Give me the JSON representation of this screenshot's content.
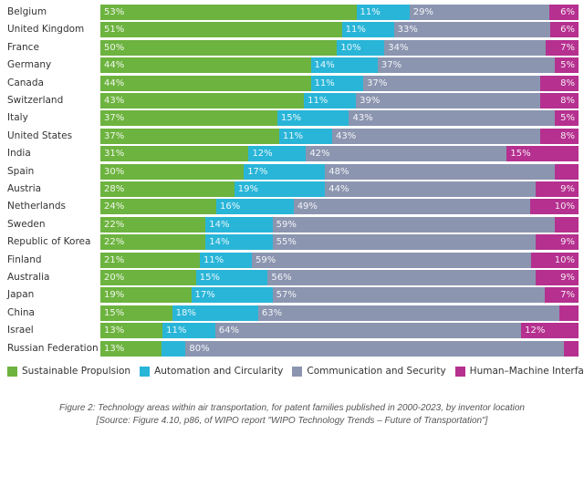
{
  "chart_data": {
    "type": "bar",
    "orientation": "horizontal",
    "stacked": true,
    "normalized": "percent",
    "title": "",
    "xlabel": "",
    "ylabel": "",
    "xlim": [
      0,
      100
    ],
    "grid": false,
    "legend_position": "bottom",
    "categories": [
      "Belgium",
      "United Kingdom",
      "France",
      "Germany",
      "Canada",
      "Switzerland",
      "Italy",
      "United States",
      "India",
      "Spain",
      "Austria",
      "Netherlands",
      "Sweden",
      "Republic of Korea",
      "Finland",
      "Australia",
      "Japan",
      "China",
      "Israel",
      "Russian Federation"
    ],
    "series": [
      {
        "name": "Sustainable Propulsion",
        "key": "sp",
        "color": "#6db33f",
        "values": [
          53,
          51,
          50,
          44,
          44,
          43,
          37,
          37,
          31,
          30,
          28,
          24,
          22,
          22,
          21,
          20,
          19,
          15,
          13,
          13
        ],
        "labels": [
          "53%",
          "51%",
          "50%",
          "44%",
          "44%",
          "43%",
          "37%",
          "37%",
          "31%",
          "30%",
          "28%",
          "24%",
          "22%",
          "22%",
          "21%",
          "20%",
          "19%",
          "15%",
          "13%",
          "13%"
        ]
      },
      {
        "name": "Automation and Circularity",
        "key": "ac",
        "color": "#29b5d8",
        "values": [
          11,
          11,
          10,
          14,
          11,
          11,
          15,
          11,
          12,
          17,
          19,
          16,
          14,
          14,
          11,
          15,
          17,
          18,
          11,
          5
        ],
        "labels": [
          "11%",
          "11%",
          "10%",
          "14%",
          "11%",
          "11%",
          "15%",
          "11%",
          "12%",
          "17%",
          "19%",
          "16%",
          "14%",
          "14%",
          "11%",
          "15%",
          "17%",
          "18%",
          "11%",
          ""
        ]
      },
      {
        "name": "Communication and Security",
        "key": "cs",
        "color": "#8b95b0",
        "values": [
          29,
          33,
          34,
          37,
          37,
          39,
          43,
          43,
          42,
          48,
          44,
          49,
          59,
          55,
          59,
          56,
          57,
          63,
          64,
          80
        ],
        "labels": [
          "29%",
          "33%",
          "34%",
          "37%",
          "37%",
          "39%",
          "43%",
          "43%",
          "42%",
          "48%",
          "44%",
          "49%",
          "59%",
          "55%",
          "59%",
          "56%",
          "57%",
          "63%",
          "64%",
          "80%"
        ]
      },
      {
        "name": "Human–Machine Interface",
        "key": "hmi",
        "color": "#b5308f",
        "values": [
          6,
          6,
          7,
          5,
          8,
          8,
          5,
          8,
          15,
          5,
          9,
          10,
          5,
          9,
          10,
          9,
          7,
          4,
          12,
          3
        ],
        "labels": [
          "6%",
          "6%",
          "7%",
          "5%",
          "8%",
          "8%",
          "5%",
          "8%",
          "15%",
          "",
          "9%",
          "10%",
          "",
          "9%",
          "10%",
          "9%",
          "7%",
          "",
          "12%",
          ""
        ]
      }
    ]
  },
  "caption": {
    "line1": "Figure 2: Technology areas within air transportation, for patent families published in 2000-2023, by inventor location",
    "line2": "[Source: Figure 4.10, p86, of WIPO report \"WIPO Technology Trends – Future of Transportation\"]"
  }
}
